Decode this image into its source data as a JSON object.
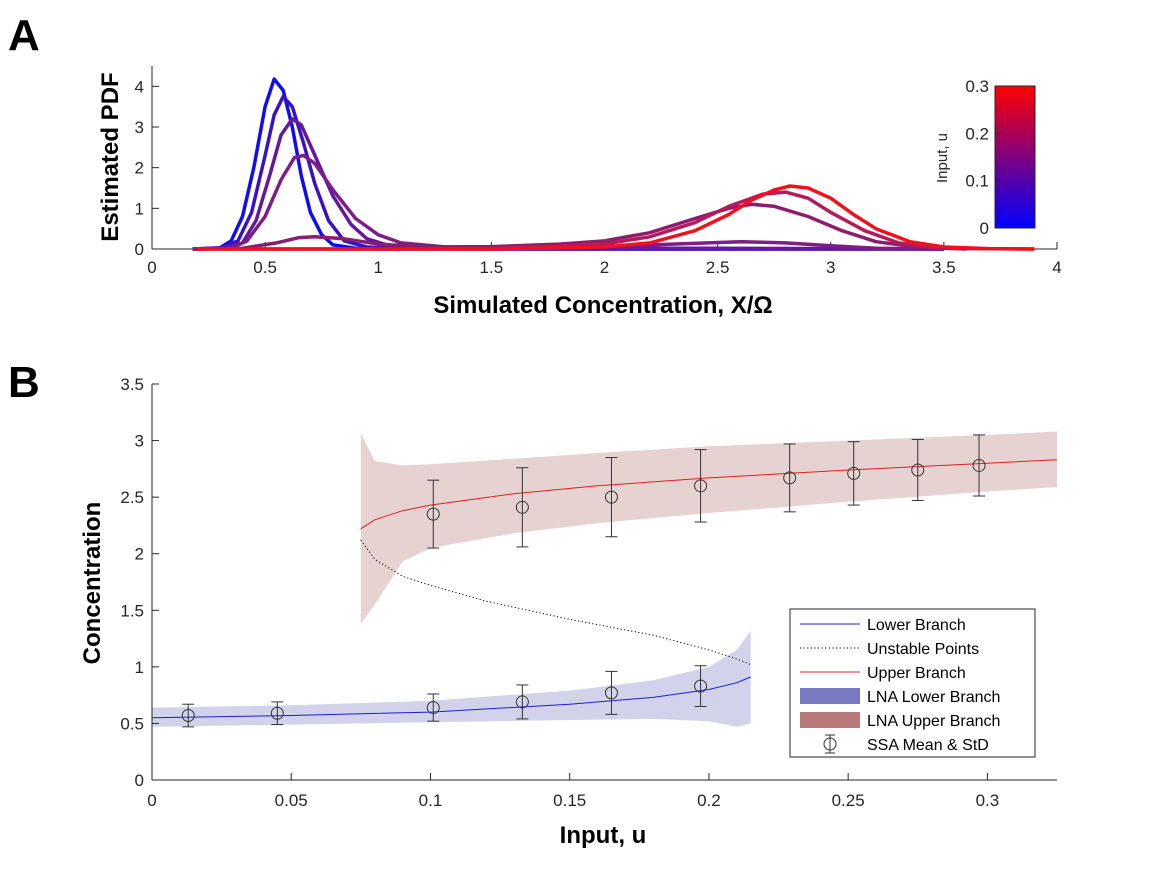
{
  "chart_data": [
    {
      "panel_label": "A",
      "type": "line",
      "xlabel": "Simulated Concentration, X/Ω",
      "ylabel": "Estimated PDF",
      "xlim": [
        0,
        4
      ],
      "ylim": [
        0,
        4.5
      ],
      "xticks": [
        0,
        0.5,
        1,
        1.5,
        2,
        2.5,
        3,
        3.5,
        4
      ],
      "yticks": [
        0,
        1,
        2,
        3,
        4
      ],
      "grid": false,
      "colorbar": {
        "label": "Input, u",
        "range": [
          0,
          0.3
        ],
        "ticks": [
          0,
          0.1,
          0.2,
          0.3
        ],
        "color_low": "#0000ff",
        "color_high": "#ff0000"
      },
      "series": [
        {
          "color": "#0f0ef0",
          "points": [
            [
              0.18,
              0
            ],
            [
              0.3,
              0.03
            ],
            [
              0.35,
              0.2
            ],
            [
              0.4,
              0.8
            ],
            [
              0.45,
              2.0
            ],
            [
              0.5,
              3.5
            ],
            [
              0.54,
              4.18
            ],
            [
              0.58,
              3.9
            ],
            [
              0.62,
              3.0
            ],
            [
              0.66,
              1.8
            ],
            [
              0.7,
              0.9
            ],
            [
              0.75,
              0.35
            ],
            [
              0.8,
              0.1
            ],
            [
              0.9,
              0.02
            ],
            [
              1.0,
              0.0
            ],
            [
              1.5,
              0
            ],
            [
              2.0,
              0
            ],
            [
              2.5,
              0
            ],
            [
              3.0,
              0
            ],
            [
              3.5,
              0
            ]
          ]
        },
        {
          "color": "#3a12c6",
          "points": [
            [
              0.18,
              0
            ],
            [
              0.3,
              0.02
            ],
            [
              0.38,
              0.2
            ],
            [
              0.44,
              0.9
            ],
            [
              0.5,
              2.3
            ],
            [
              0.54,
              3.3
            ],
            [
              0.58,
              3.75
            ],
            [
              0.62,
              3.5
            ],
            [
              0.67,
              2.6
            ],
            [
              0.72,
              1.6
            ],
            [
              0.78,
              0.7
            ],
            [
              0.85,
              0.2
            ],
            [
              0.95,
              0.05
            ],
            [
              1.1,
              0.01
            ],
            [
              1.5,
              0
            ],
            [
              2.0,
              0
            ],
            [
              2.5,
              0
            ],
            [
              3.0,
              0
            ],
            [
              3.5,
              0
            ]
          ]
        },
        {
          "color": "#65189c",
          "points": [
            [
              0.18,
              0
            ],
            [
              0.32,
              0.02
            ],
            [
              0.4,
              0.15
            ],
            [
              0.46,
              0.7
            ],
            [
              0.52,
              1.8
            ],
            [
              0.57,
              2.8
            ],
            [
              0.62,
              3.2
            ],
            [
              0.66,
              3.05
            ],
            [
              0.72,
              2.3
            ],
            [
              0.8,
              1.3
            ],
            [
              0.88,
              0.6
            ],
            [
              0.95,
              0.25
            ],
            [
              1.05,
              0.08
            ],
            [
              1.2,
              0.02
            ],
            [
              1.6,
              0.01
            ],
            [
              2.0,
              0.02
            ],
            [
              2.5,
              0.02
            ],
            [
              3.0,
              0.01
            ],
            [
              3.5,
              0
            ]
          ]
        },
        {
          "color": "#7d1d86",
          "points": [
            [
              0.18,
              0
            ],
            [
              0.35,
              0.02
            ],
            [
              0.42,
              0.2
            ],
            [
              0.5,
              0.8
            ],
            [
              0.57,
              1.7
            ],
            [
              0.63,
              2.25
            ],
            [
              0.67,
              2.3
            ],
            [
              0.72,
              2.1
            ],
            [
              0.8,
              1.45
            ],
            [
              0.9,
              0.75
            ],
            [
              1.0,
              0.35
            ],
            [
              1.1,
              0.15
            ],
            [
              1.3,
              0.05
            ],
            [
              1.6,
              0.03
            ],
            [
              2.0,
              0.06
            ],
            [
              2.3,
              0.12
            ],
            [
              2.6,
              0.18
            ],
            [
              2.8,
              0.15
            ],
            [
              3.0,
              0.08
            ],
            [
              3.2,
              0.02
            ],
            [
              3.5,
              0
            ]
          ]
        },
        {
          "color": "#8c1c6e",
          "points": [
            [
              0.18,
              0
            ],
            [
              0.4,
              0.02
            ],
            [
              0.55,
              0.15
            ],
            [
              0.65,
              0.28
            ],
            [
              0.72,
              0.3
            ],
            [
              0.85,
              0.25
            ],
            [
              1.0,
              0.12
            ],
            [
              1.2,
              0.05
            ],
            [
              1.5,
              0.06
            ],
            [
              1.8,
              0.12
            ],
            [
              2.0,
              0.2
            ],
            [
              2.2,
              0.4
            ],
            [
              2.4,
              0.75
            ],
            [
              2.55,
              1.0
            ],
            [
              2.65,
              1.1
            ],
            [
              2.75,
              1.05
            ],
            [
              2.9,
              0.8
            ],
            [
              3.05,
              0.45
            ],
            [
              3.2,
              0.18
            ],
            [
              3.4,
              0.04
            ],
            [
              3.6,
              0
            ]
          ]
        },
        {
          "color": "#b51a5a",
          "points": [
            [
              0.2,
              0
            ],
            [
              1.0,
              0
            ],
            [
              1.5,
              0.02
            ],
            [
              2.0,
              0.12
            ],
            [
              2.2,
              0.3
            ],
            [
              2.4,
              0.65
            ],
            [
              2.55,
              1.05
            ],
            [
              2.7,
              1.35
            ],
            [
              2.8,
              1.4
            ],
            [
              2.9,
              1.25
            ],
            [
              3.0,
              0.9
            ],
            [
              3.15,
              0.45
            ],
            [
              3.3,
              0.15
            ],
            [
              3.45,
              0.04
            ],
            [
              3.6,
              0.01
            ],
            [
              3.9,
              0
            ]
          ]
        },
        {
          "color": "#f0101e",
          "points": [
            [
              0.2,
              0
            ],
            [
              1.0,
              0
            ],
            [
              1.5,
              0.0
            ],
            [
              2.0,
              0.05
            ],
            [
              2.2,
              0.15
            ],
            [
              2.4,
              0.45
            ],
            [
              2.55,
              0.85
            ],
            [
              2.65,
              1.2
            ],
            [
              2.75,
              1.45
            ],
            [
              2.82,
              1.55
            ],
            [
              2.9,
              1.5
            ],
            [
              3.0,
              1.25
            ],
            [
              3.1,
              0.85
            ],
            [
              3.2,
              0.5
            ],
            [
              3.35,
              0.18
            ],
            [
              3.5,
              0.05
            ],
            [
              3.7,
              0.01
            ],
            [
              3.9,
              0
            ]
          ]
        }
      ]
    },
    {
      "panel_label": "B",
      "type": "line",
      "xlabel": "Input, u",
      "ylabel": "Concentration",
      "xlim": [
        0,
        0.325
      ],
      "ylim": [
        0,
        3.5
      ],
      "xticks": [
        0,
        0.05,
        0.1,
        0.15,
        0.2,
        0.25,
        0.3
      ],
      "yticks": [
        0,
        0.5,
        1,
        1.5,
        2,
        2.5,
        3,
        3.5
      ],
      "grid": false,
      "legend_position": "lower-right",
      "series": [
        {
          "name": "Lower Branch",
          "style": "line",
          "color": "#1f1fcf",
          "x": [
            0,
            0.05,
            0.1,
            0.15,
            0.18,
            0.2,
            0.21,
            0.215
          ],
          "y": [
            0.55,
            0.57,
            0.6,
            0.67,
            0.73,
            0.8,
            0.86,
            0.91
          ]
        },
        {
          "name": "Unstable Points",
          "style": "dotted",
          "color": "#000000",
          "x": [
            0.075,
            0.08,
            0.09,
            0.1,
            0.12,
            0.15,
            0.18,
            0.2,
            0.21,
            0.215
          ],
          "y": [
            2.12,
            1.95,
            1.8,
            1.72,
            1.58,
            1.42,
            1.28,
            1.15,
            1.07,
            1.02
          ]
        },
        {
          "name": "Upper Branch",
          "style": "line",
          "color": "#e02020",
          "x": [
            0.075,
            0.08,
            0.09,
            0.1,
            0.13,
            0.16,
            0.2,
            0.25,
            0.3,
            0.325
          ],
          "y": [
            2.22,
            2.3,
            2.38,
            2.43,
            2.53,
            2.6,
            2.67,
            2.74,
            2.8,
            2.83
          ]
        },
        {
          "name": "LNA Lower Branch",
          "style": "band",
          "color": "#6b6bbd",
          "x": [
            0,
            0.05,
            0.1,
            0.15,
            0.18,
            0.2,
            0.21,
            0.215
          ],
          "lower": [
            0.47,
            0.49,
            0.51,
            0.53,
            0.54,
            0.52,
            0.47,
            0.5
          ],
          "upper": [
            0.64,
            0.66,
            0.7,
            0.79,
            0.88,
            1.0,
            1.15,
            1.32
          ]
        },
        {
          "name": "LNA Upper Branch",
          "style": "band",
          "color": "#b06a6a",
          "x": [
            0.075,
            0.08,
            0.09,
            0.1,
            0.13,
            0.16,
            0.2,
            0.25,
            0.3,
            0.325
          ],
          "lower": [
            1.38,
            1.55,
            1.93,
            2.05,
            2.18,
            2.27,
            2.36,
            2.46,
            2.55,
            2.59
          ],
          "upper": [
            3.06,
            2.82,
            2.78,
            2.79,
            2.84,
            2.89,
            2.95,
            3.0,
            3.05,
            3.08
          ]
        },
        {
          "name": "SSA Mean & StD",
          "style": "errorbar",
          "color": "#333333",
          "x": [
            0.013,
            0.045,
            0.101,
            0.133,
            0.165,
            0.197,
            0.229,
            0.252,
            0.275,
            0.297
          ],
          "y": [
            0.57,
            0.59,
            0.64,
            0.69,
            0.77,
            0.83,
            2.67,
            2.71,
            2.74,
            2.78
          ],
          "err": [
            0.1,
            0.1,
            0.12,
            0.15,
            0.19,
            0.18,
            0.3,
            0.28,
            0.27,
            0.27
          ],
          "upper_x": [
            0.101,
            0.133,
            0.165,
            0.197
          ],
          "upper_y": [
            2.35,
            2.41,
            2.5,
            2.6
          ],
          "upper_err": [
            0.3,
            0.35,
            0.35,
            0.32
          ]
        }
      ]
    }
  ]
}
